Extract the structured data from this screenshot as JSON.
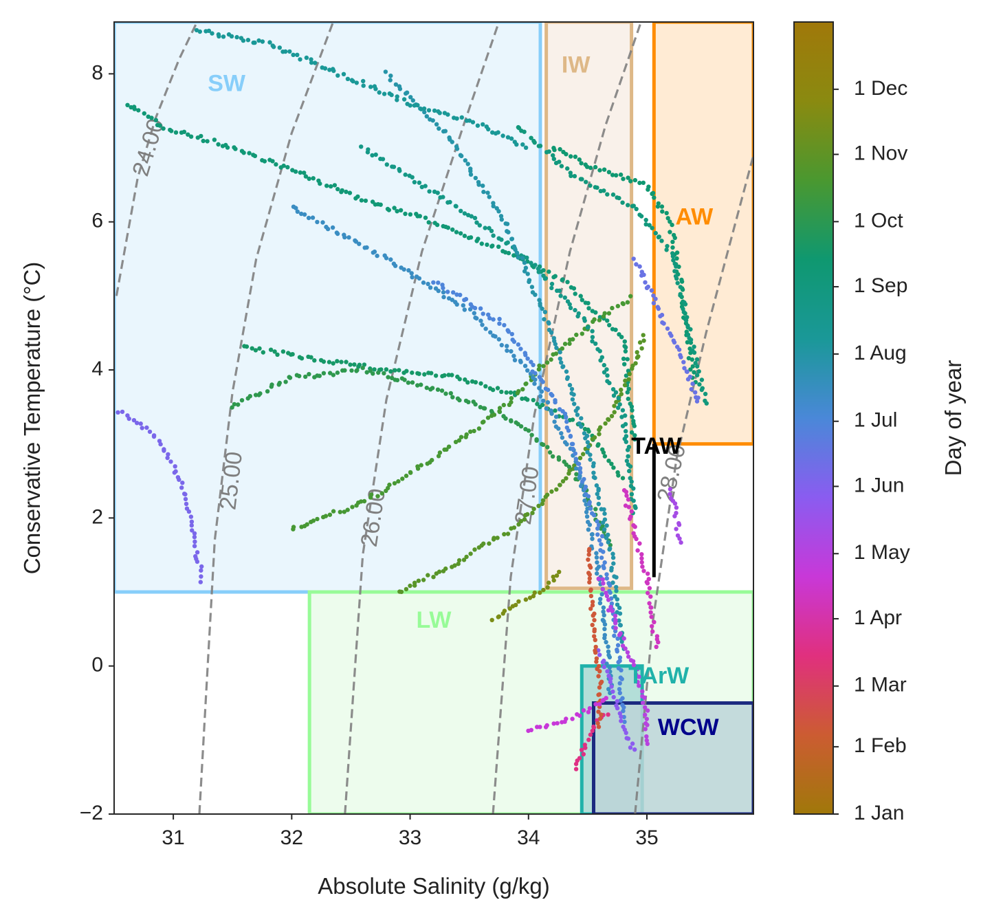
{
  "chart_data": {
    "type": "scatter",
    "title": "",
    "xlabel": "Absolute Salinity (g/kg)",
    "ylabel": "Conservative Temperature (°C)",
    "xlim": [
      30.5,
      35.9
    ],
    "ylim": [
      -2,
      8.7
    ],
    "xticks": [
      31,
      32,
      33,
      34,
      35
    ],
    "yticks": [
      -2,
      0,
      2,
      4,
      6,
      8
    ],
    "xtick_labels": [
      "31",
      "32",
      "33",
      "34",
      "35"
    ],
    "ytick_labels": [
      "−2",
      "0",
      "2",
      "4",
      "6",
      "8"
    ],
    "grid": false,
    "colorbar": {
      "label": "Day of year",
      "range": [
        0,
        365
      ],
      "ticks": [
        0,
        31,
        59,
        90,
        120,
        151,
        181,
        212,
        243,
        273,
        304,
        334
      ],
      "tick_labels": [
        "1 Jan",
        "1 Feb",
        "1 Mar",
        "1 Apr",
        "1 May",
        "1 Jun",
        "1 Jul",
        "1 Aug",
        "1 Sep",
        "1 Oct",
        "1 Nov",
        "1 Dec"
      ],
      "colors": [
        "#a0780a",
        "#cc5c32",
        "#e0307e",
        "#c838d8",
        "#8a5cf0",
        "#4a88d8",
        "#1a9898",
        "#0f9870",
        "#4a9830",
        "#8a8a10",
        "#a0780a"
      ]
    },
    "water_masses": [
      {
        "name": "SW",
        "salinity": [
          30.5,
          34.1
        ],
        "temperature": [
          1.0,
          8.7
        ],
        "edge": "#87cefa",
        "fill": "#e6f4fd",
        "label_at": [
          31.45,
          7.85
        ],
        "label_color": "#87cefa"
      },
      {
        "name": "IW",
        "salinity": [
          34.15,
          34.87
        ],
        "temperature": [
          1.05,
          8.7
        ],
        "edge": "#deb887",
        "fill": "#f8efe6",
        "label_at": [
          34.4,
          8.1
        ],
        "label_color": "#deb887"
      },
      {
        "name": "AW",
        "salinity": [
          35.06,
          35.9
        ],
        "temperature": [
          3.0,
          8.7
        ],
        "edge": "#ff8c00",
        "fill": "#ffe8cc",
        "label_at": [
          35.4,
          6.05
        ],
        "label_color": "#ff8c00"
      },
      {
        "name": "LW",
        "salinity": [
          32.15,
          35.9
        ],
        "temperature": [
          -2.0,
          1.0
        ],
        "edge": "#98fb98",
        "fill": "#eafcea",
        "label_at": [
          33.2,
          0.6
        ],
        "label_color": "#98fb98"
      },
      {
        "name": "TArW",
        "salinity": [
          34.45,
          34.96
        ],
        "temperature": [
          -2.0,
          0.0
        ],
        "edge": "#20b2aa",
        "fill": "#a8d8d4",
        "label_at": [
          35.1,
          -0.15
        ],
        "label_color": "#20b2aa"
      },
      {
        "name": "WCW",
        "salinity": [
          34.55,
          35.9
        ],
        "temperature": [
          -2.0,
          -0.5
        ],
        "edge": "#1c2a80",
        "fill": "#bcd5d8",
        "label_at": [
          35.35,
          -0.85
        ],
        "label_color": "#00008b"
      }
    ],
    "taw": {
      "name": "TAW",
      "salinity": 35.06,
      "temperature": [
        1.2,
        3.0
      ],
      "label_at": [
        35.08,
        2.95
      ]
    },
    "isopycnals": [
      {
        "label": "24.00",
        "points": [
          [
            30.52,
            5.0
          ],
          [
            30.7,
            6.6
          ],
          [
            30.85,
            7.4
          ],
          [
            31.05,
            8.2
          ],
          [
            31.2,
            8.7
          ]
        ],
        "label_at": [
          30.8,
          7.0
        ]
      },
      {
        "label": "25.00",
        "points": [
          [
            31.22,
            -2.0
          ],
          [
            31.35,
            1.7
          ],
          [
            31.5,
            3.7
          ],
          [
            31.7,
            5.5
          ],
          [
            32.0,
            7.2
          ],
          [
            32.35,
            8.7
          ]
        ],
        "label_at": [
          31.5,
          2.5
        ]
      },
      {
        "label": "26.00",
        "points": [
          [
            32.45,
            -2.0
          ],
          [
            32.6,
            1.5
          ],
          [
            32.8,
            3.6
          ],
          [
            33.1,
            5.6
          ],
          [
            33.45,
            7.3
          ],
          [
            33.75,
            8.7
          ]
        ],
        "label_at": [
          32.7,
          2.0
        ]
      },
      {
        "label": "27.00",
        "points": [
          [
            33.7,
            -2.0
          ],
          [
            33.85,
            1.2
          ],
          [
            34.05,
            3.4
          ],
          [
            34.35,
            5.6
          ],
          [
            34.65,
            7.3
          ],
          [
            34.95,
            8.7
          ]
        ],
        "label_at": [
          34.0,
          2.3
        ]
      },
      {
        "label": "28.00",
        "points": [
          [
            34.9,
            -2.0
          ],
          [
            35.05,
            0.6
          ],
          [
            35.25,
            2.8
          ],
          [
            35.5,
            4.5
          ],
          [
            35.9,
            6.9
          ]
        ],
        "label_at": [
          35.22,
          2.6
        ]
      }
    ],
    "profiles": [
      {
        "day": 155,
        "points": [
          [
            30.55,
            3.45
          ],
          [
            30.85,
            3.1
          ],
          [
            31.0,
            2.7
          ],
          [
            31.1,
            2.3
          ],
          [
            31.15,
            1.9
          ],
          [
            31.2,
            1.5
          ],
          [
            31.25,
            1.1
          ]
        ]
      },
      {
        "day": 250,
        "points": [
          [
            30.6,
            7.6
          ],
          [
            30.9,
            7.3
          ],
          [
            31.5,
            7.0
          ],
          [
            32.0,
            6.7
          ],
          [
            32.6,
            6.3
          ],
          [
            33.2,
            6.0
          ],
          [
            33.8,
            5.6
          ],
          [
            34.3,
            5.2
          ],
          [
            34.8,
            4.4
          ],
          [
            34.9,
            3.0
          ]
        ]
      },
      {
        "day": 260,
        "points": [
          [
            31.6,
            4.3
          ],
          [
            32.2,
            4.15
          ],
          [
            32.8,
            4.0
          ],
          [
            33.4,
            3.9
          ],
          [
            34.0,
            3.6
          ],
          [
            34.5,
            3.2
          ],
          [
            34.8,
            2.5
          ]
        ]
      },
      {
        "day": 275,
        "points": [
          [
            31.5,
            3.5
          ],
          [
            32.0,
            3.9
          ],
          [
            32.6,
            4.0
          ],
          [
            33.3,
            3.7
          ],
          [
            33.9,
            3.3
          ],
          [
            34.4,
            2.6
          ],
          [
            34.7,
            1.6
          ]
        ]
      },
      {
        "day": 290,
        "points": [
          [
            32.0,
            1.85
          ],
          [
            32.6,
            2.2
          ],
          [
            33.2,
            2.8
          ],
          [
            33.8,
            3.5
          ],
          [
            34.2,
            4.2
          ],
          [
            34.6,
            4.7
          ],
          [
            34.9,
            5.0
          ]
        ]
      },
      {
        "day": 300,
        "points": [
          [
            32.9,
            1.0
          ],
          [
            33.4,
            1.4
          ],
          [
            33.9,
            1.9
          ],
          [
            34.3,
            2.5
          ],
          [
            34.7,
            3.4
          ],
          [
            35.0,
            4.5
          ]
        ]
      },
      {
        "day": 255,
        "points": [
          [
            34.2,
            7.0
          ],
          [
            34.6,
            6.7
          ],
          [
            35.0,
            6.5
          ],
          [
            35.2,
            6.0
          ],
          [
            35.3,
            5.0
          ],
          [
            35.4,
            3.8
          ]
        ]
      },
      {
        "day": 245,
        "points": [
          [
            33.9,
            7.3
          ],
          [
            34.4,
            6.6
          ],
          [
            34.9,
            6.2
          ],
          [
            35.2,
            5.6
          ],
          [
            35.35,
            4.6
          ],
          [
            35.5,
            3.5
          ]
        ]
      },
      {
        "day": 235,
        "points": [
          [
            32.6,
            7.0
          ],
          [
            33.4,
            6.2
          ],
          [
            34.0,
            5.5
          ],
          [
            34.5,
            4.6
          ],
          [
            34.8,
            3.4
          ],
          [
            34.9,
            2.0
          ]
        ]
      },
      {
        "day": 210,
        "points": [
          [
            32.8,
            8.0
          ],
          [
            33.3,
            7.2
          ],
          [
            33.8,
            6.0
          ],
          [
            34.2,
            4.5
          ],
          [
            34.5,
            3.0
          ],
          [
            34.7,
            1.5
          ],
          [
            34.8,
            0.2
          ]
        ]
      },
      {
        "day": 195,
        "points": [
          [
            32.0,
            6.2
          ],
          [
            32.8,
            5.5
          ],
          [
            33.5,
            4.8
          ],
          [
            34.0,
            4.0
          ],
          [
            34.4,
            2.8
          ],
          [
            34.6,
            1.2
          ],
          [
            34.7,
            -0.4
          ]
        ]
      },
      {
        "day": 180,
        "points": [
          [
            33.2,
            5.2
          ],
          [
            33.8,
            4.6
          ],
          [
            34.3,
            3.4
          ],
          [
            34.6,
            1.8
          ],
          [
            34.75,
            0.3
          ],
          [
            34.8,
            -0.8
          ]
        ]
      },
      {
        "day": 165,
        "points": [
          [
            34.9,
            5.5
          ],
          [
            35.1,
            4.8
          ],
          [
            35.3,
            4.1
          ],
          [
            35.45,
            3.5
          ]
        ]
      },
      {
        "day": 145,
        "points": [
          [
            34.6,
            0.2
          ],
          [
            34.7,
            -0.3
          ],
          [
            34.8,
            -0.8
          ],
          [
            34.9,
            -1.2
          ]
        ]
      },
      {
        "day": 120,
        "points": [
          [
            34.6,
            1.2
          ],
          [
            34.75,
            0.5
          ],
          [
            34.9,
            0.0
          ],
          [
            35.0,
            -0.6
          ],
          [
            35.0,
            -1.1
          ]
        ]
      },
      {
        "day": 100,
        "points": [
          [
            34.8,
            2.4
          ],
          [
            34.9,
            1.8
          ],
          [
            35.0,
            1.2
          ],
          [
            35.05,
            0.6
          ],
          [
            35.1,
            0.2
          ]
        ]
      },
      {
        "day": 75,
        "points": [
          [
            34.4,
            -1.4
          ],
          [
            34.5,
            -1.0
          ],
          [
            34.6,
            -0.7
          ],
          [
            34.7,
            -0.6
          ]
        ]
      },
      {
        "day": 40,
        "points": [
          [
            34.5,
            1.6
          ],
          [
            34.55,
            0.5
          ],
          [
            34.6,
            -0.2
          ],
          [
            34.6,
            -0.9
          ]
        ]
      },
      {
        "day": 130,
        "points": [
          [
            35.2,
            2.4
          ],
          [
            35.25,
            2.0
          ],
          [
            35.28,
            1.6
          ]
        ]
      },
      {
        "day": 110,
        "points": [
          [
            34.0,
            -0.85
          ],
          [
            34.3,
            -0.75
          ],
          [
            34.5,
            -0.6
          ],
          [
            34.7,
            -0.4
          ]
        ]
      },
      {
        "day": 320,
        "points": [
          [
            33.7,
            0.6
          ],
          [
            33.9,
            0.85
          ],
          [
            34.1,
            1.0
          ],
          [
            34.3,
            1.3
          ]
        ]
      },
      {
        "day": 220,
        "points": [
          [
            31.2,
            8.6
          ],
          [
            31.8,
            8.4
          ],
          [
            32.4,
            8.0
          ],
          [
            33.0,
            7.6
          ],
          [
            33.6,
            7.3
          ],
          [
            34.0,
            7.0
          ]
        ]
      }
    ]
  }
}
